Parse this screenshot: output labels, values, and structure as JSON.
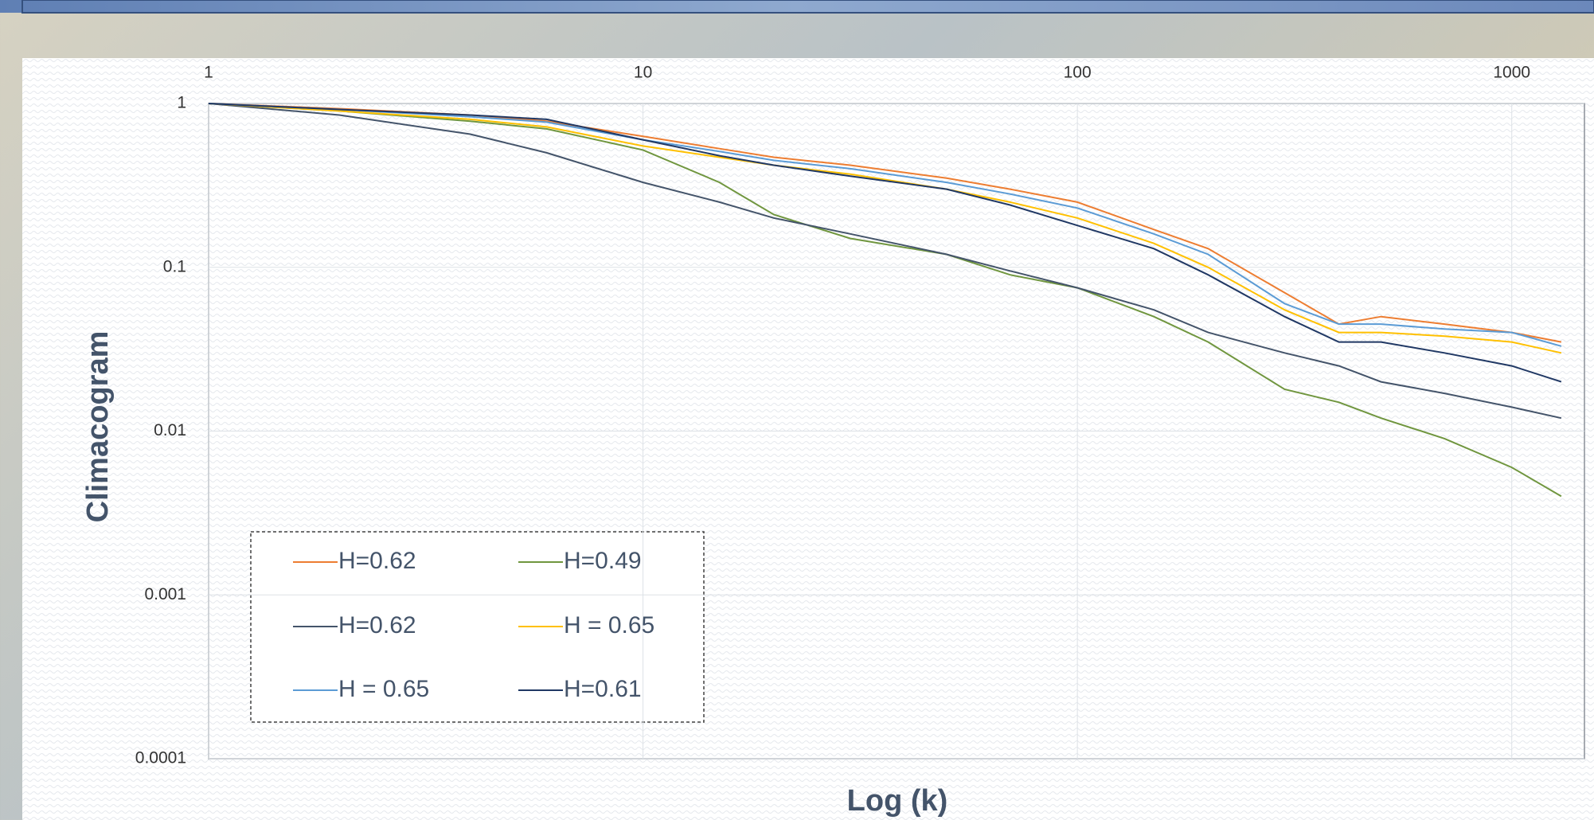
{
  "chart_data": {
    "type": "line",
    "y_label": "Climacogram",
    "x_label": "Log (k)",
    "xscale": "log",
    "yscale": "log",
    "grid": true,
    "xlim": [
      1,
      1470
    ],
    "ylim": [
      0.0001,
      1
    ],
    "xticks": [
      1,
      10,
      100,
      1000
    ],
    "yticks": [
      1,
      0.1,
      0.01,
      0.001,
      0.0001
    ],
    "legend": "lower-left",
    "x": [
      1,
      2,
      4,
      6,
      10,
      15,
      20,
      30,
      50,
      70,
      100,
      150,
      200,
      300,
      400,
      500,
      700,
      1000,
      1300
    ],
    "series": [
      {
        "name": "H=0.62",
        "color": "#ed7d31",
        "values": [
          1,
          0.93,
          0.85,
          0.78,
          0.63,
          0.53,
          0.47,
          0.42,
          0.35,
          0.3,
          0.25,
          0.17,
          0.13,
          0.07,
          0.045,
          0.05,
          0.045,
          0.04,
          0.035
        ]
      },
      {
        "name": "H=0.49",
        "color": "#70963f",
        "values": [
          1,
          0.9,
          0.78,
          0.7,
          0.52,
          0.33,
          0.21,
          0.15,
          0.12,
          0.09,
          0.075,
          0.05,
          0.035,
          0.018,
          0.015,
          0.012,
          0.009,
          0.006,
          0.004
        ]
      },
      {
        "name": "H=0.62",
        "color": "#44546a",
        "values": [
          1,
          0.85,
          0.65,
          0.5,
          0.33,
          0.25,
          0.2,
          0.16,
          0.12,
          0.095,
          0.075,
          0.055,
          0.04,
          0.03,
          0.025,
          0.02,
          0.017,
          0.014,
          0.012
        ]
      },
      {
        "name": "H = 0.65",
        "color": "#ffc000",
        "values": [
          1,
          0.9,
          0.8,
          0.72,
          0.55,
          0.47,
          0.42,
          0.37,
          0.3,
          0.25,
          0.2,
          0.14,
          0.1,
          0.055,
          0.04,
          0.04,
          0.038,
          0.035,
          0.03
        ]
      },
      {
        "name": "H = 0.65",
        "color": "#5b9bd5",
        "values": [
          1,
          0.92,
          0.83,
          0.77,
          0.6,
          0.51,
          0.45,
          0.4,
          0.33,
          0.28,
          0.23,
          0.16,
          0.12,
          0.06,
          0.045,
          0.045,
          0.042,
          0.04,
          0.033
        ]
      },
      {
        "name": "H=0.61",
        "color": "#203864",
        "values": [
          1,
          0.92,
          0.85,
          0.8,
          0.6,
          0.48,
          0.42,
          0.36,
          0.3,
          0.24,
          0.18,
          0.13,
          0.09,
          0.05,
          0.035,
          0.035,
          0.03,
          0.025,
          0.02
        ]
      }
    ]
  }
}
